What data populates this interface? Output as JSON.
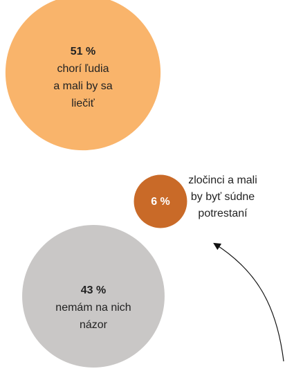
{
  "chart_data": {
    "type": "bubble",
    "categories": [
      [
        "chorí ľudia",
        "a mali by sa",
        "liečiť"
      ],
      [
        "zločinci a mali",
        "by byť súdne",
        "potrestaní"
      ],
      [
        "nemám na nich",
        "názor"
      ]
    ],
    "values": [
      51,
      6,
      43
    ],
    "value_labels": [
      "51 %",
      "6 %",
      "43 %"
    ],
    "colors": [
      "#f9b46b",
      "#c96a28",
      "#c9c7c6"
    ]
  }
}
